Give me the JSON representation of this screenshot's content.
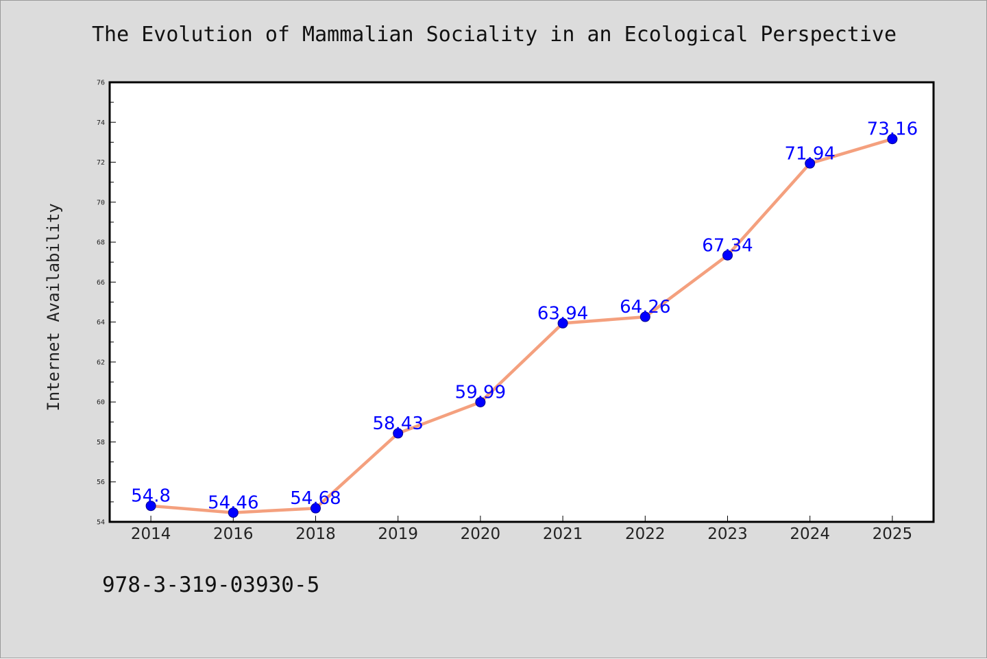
{
  "chart_data": {
    "type": "line",
    "title": "The Evolution of Mammalian Sociality in an Ecological Perspective",
    "xlabel": "",
    "ylabel": "Internet Availability",
    "categories": [
      "2014",
      "2016",
      "2018",
      "2019",
      "2020",
      "2021",
      "2022",
      "2023",
      "2024",
      "2025"
    ],
    "series": [
      {
        "values": [
          54.8,
          54.46,
          54.68,
          58.43,
          59.99,
          63.94,
          64.26,
          67.34,
          71.94,
          73.16
        ],
        "labels": [
          "54.8",
          "54.46",
          "54.68",
          "58.43",
          "59.99",
          "63.94",
          "64.26",
          "67.34",
          "71.94",
          "73.16"
        ]
      }
    ],
    "ylim": [
      54,
      76
    ],
    "y_ticks": [
      "54",
      "56",
      "58",
      "60",
      "62",
      "64",
      "66",
      "68",
      "70",
      "72",
      "74",
      "76"
    ],
    "grid": false,
    "legend": "none",
    "line_color": "#f4a07e",
    "marker_color": "#0000ff",
    "label_color": "#0000ff"
  },
  "footer_code": "978-3-319-03930-5"
}
